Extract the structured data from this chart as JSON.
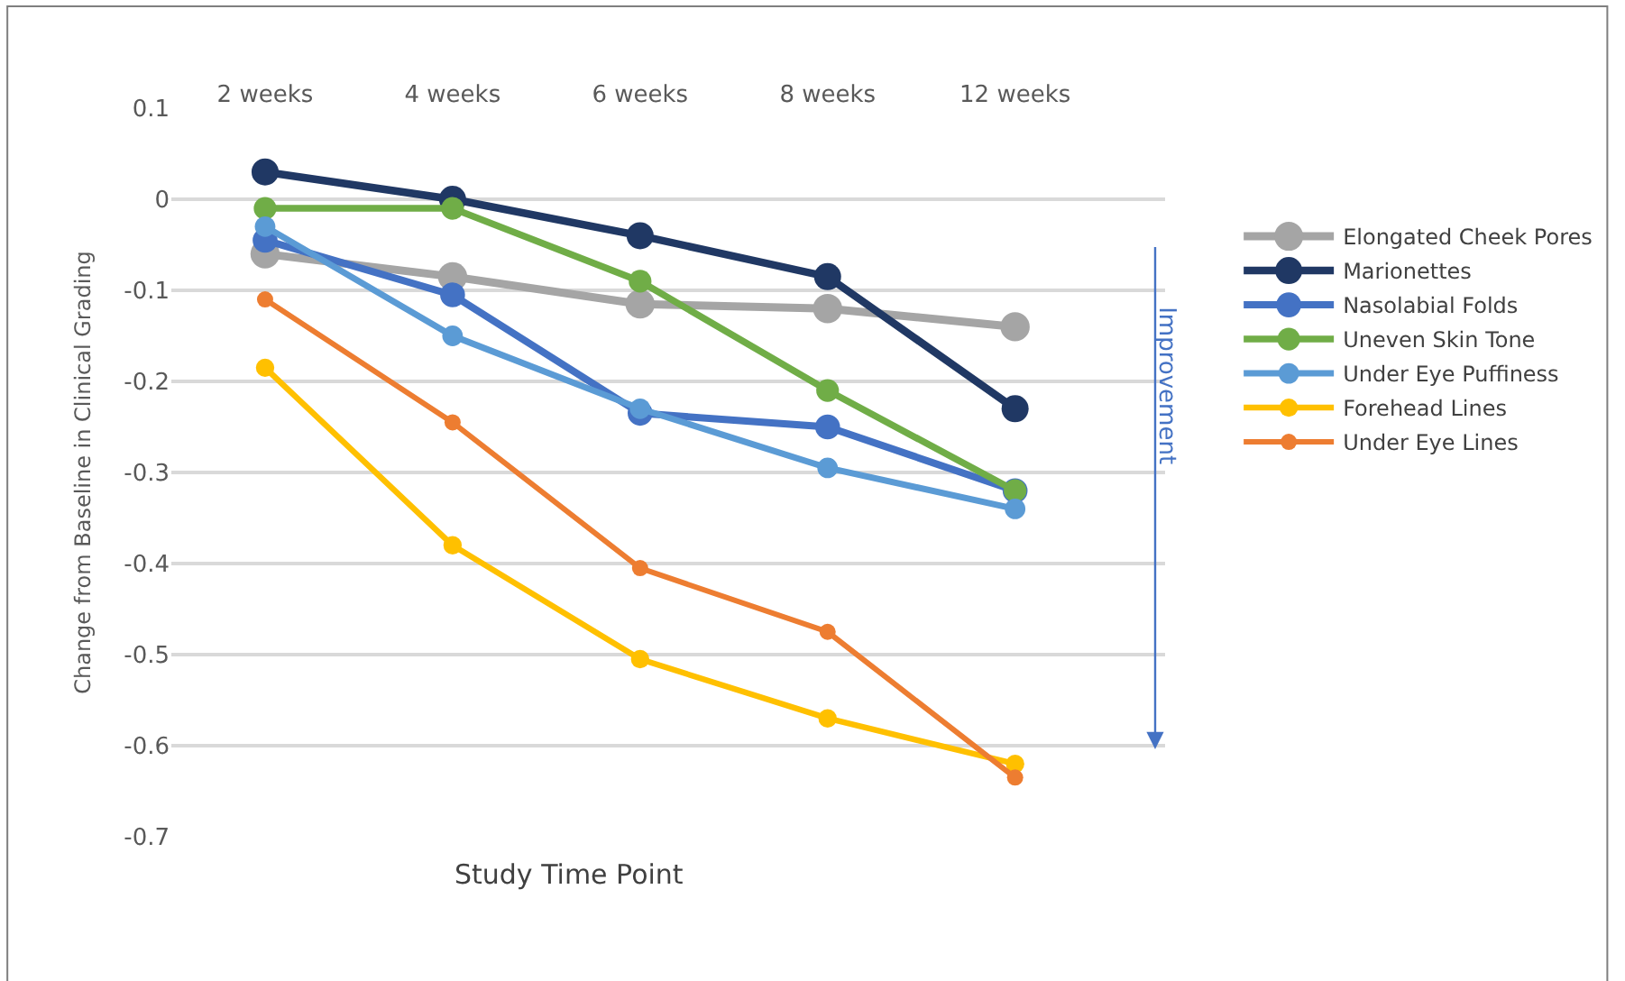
{
  "chart_data": {
    "type": "line",
    "xlabel": "Study Time Point",
    "ylabel": "Change from Baseline in Clinical Grading",
    "categories": [
      "2 weeks",
      "4 weeks",
      "6 weeks",
      "8 weeks",
      "12 weeks"
    ],
    "series": [
      {
        "name": "Elongated Cheek Pores",
        "color": "#a5a5a5",
        "values": [
          -0.06,
          -0.085,
          -0.115,
          -0.12,
          -0.14
        ]
      },
      {
        "name": "Marionettes",
        "color": "#203864",
        "values": [
          0.03,
          0.0,
          -0.04,
          -0.085,
          -0.23
        ]
      },
      {
        "name": "Nasolabial Folds",
        "color": "#4472c4",
        "values": [
          -0.045,
          -0.105,
          -0.235,
          -0.25,
          -0.32
        ]
      },
      {
        "name": "Uneven Skin Tone",
        "color": "#70ad47",
        "values": [
          -0.01,
          -0.01,
          -0.09,
          -0.21,
          -0.32
        ]
      },
      {
        "name": "Under Eye Puffiness",
        "color": "#5b9bd5",
        "values": [
          -0.03,
          -0.15,
          -0.23,
          -0.295,
          -0.34
        ]
      },
      {
        "name": "Forehead Lines",
        "color": "#ffc000",
        "values": [
          -0.185,
          -0.38,
          -0.505,
          -0.57,
          -0.62
        ]
      },
      {
        "name": "Under Eye Lines",
        "color": "#ed7d31",
        "values": [
          -0.11,
          -0.245,
          -0.405,
          -0.475,
          -0.635
        ]
      }
    ],
    "ylim": [
      -0.7,
      0.1
    ],
    "yticks": [
      0.1,
      0,
      -0.1,
      -0.2,
      -0.3,
      -0.4,
      -0.5,
      -0.6,
      -0.7
    ],
    "grid": "y",
    "legend": "right",
    "marker": "circle",
    "line_style": "solid",
    "annotations": [
      "Improvement"
    ]
  }
}
